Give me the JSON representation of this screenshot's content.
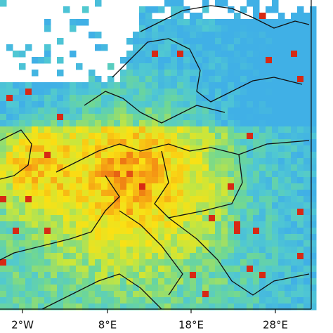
{
  "map": {
    "x_labels": [
      "2°W",
      "8°E",
      "18°E",
      "28°E"
    ]
  }
}
